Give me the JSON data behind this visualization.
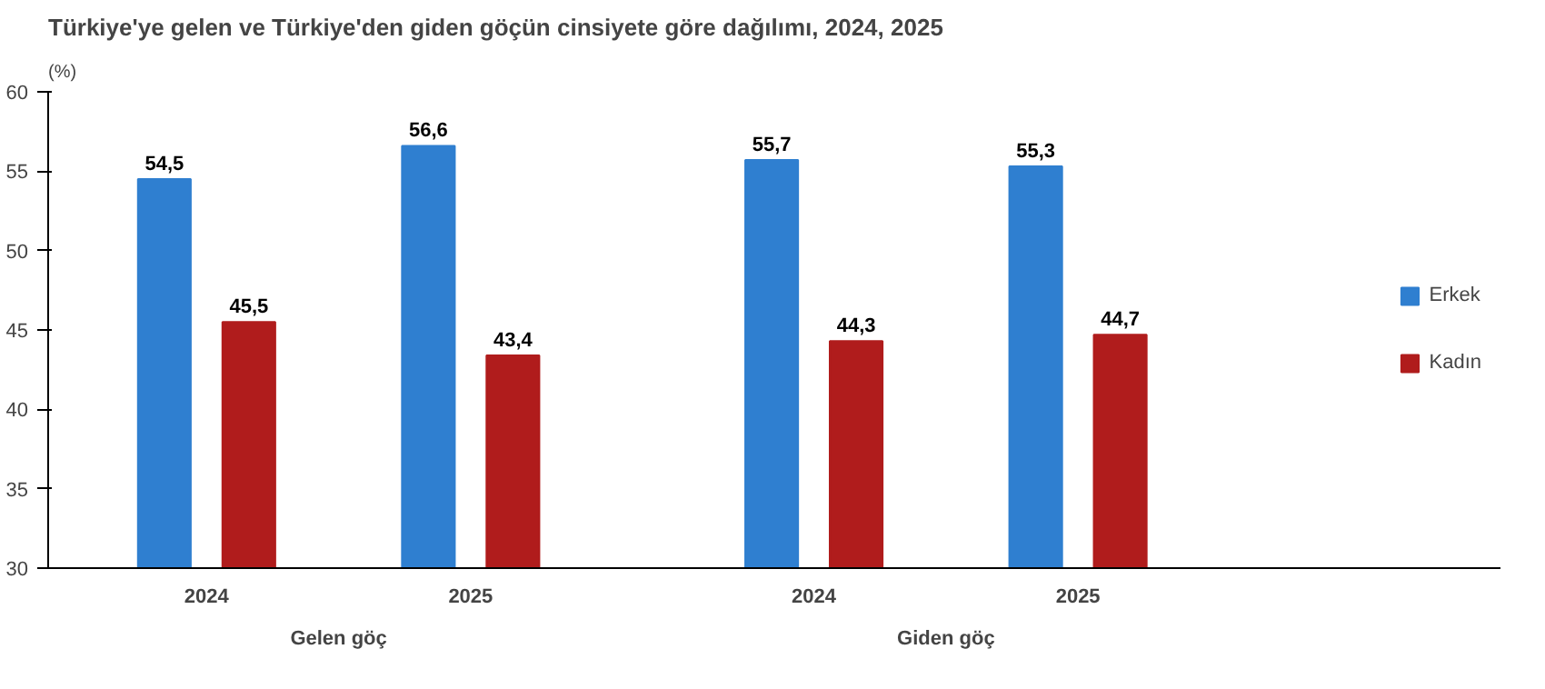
{
  "chart_data": {
    "type": "bar",
    "title": "Türkiye'ye gelen ve Türkiye'den giden göçün cinsiyete göre dağılımı, 2024, 2025",
    "ylabel": "(%)",
    "categories": [
      "2024",
      "2025",
      "2024",
      "2025"
    ],
    "annotations": [
      "Gelen göç",
      "Giden göç"
    ],
    "series": [
      {
        "name": "Erkek",
        "color": "#2f7fd0",
        "values": [
          54.5,
          56.6,
          55.7,
          55.3
        ],
        "value_labels": [
          "54,5",
          "56,6",
          "55,7",
          "55,3"
        ]
      },
      {
        "name": "Kadın",
        "color": "#b01c1c",
        "values": [
          45.5,
          43.4,
          44.3,
          44.7
        ],
        "value_labels": [
          "45,5",
          "43,4",
          "44,3",
          "44,7"
        ]
      }
    ],
    "ylim": [
      30,
      60
    ],
    "yticks": [
      30,
      35,
      40,
      45,
      50,
      55,
      60
    ],
    "grid": false,
    "legend": "right"
  }
}
